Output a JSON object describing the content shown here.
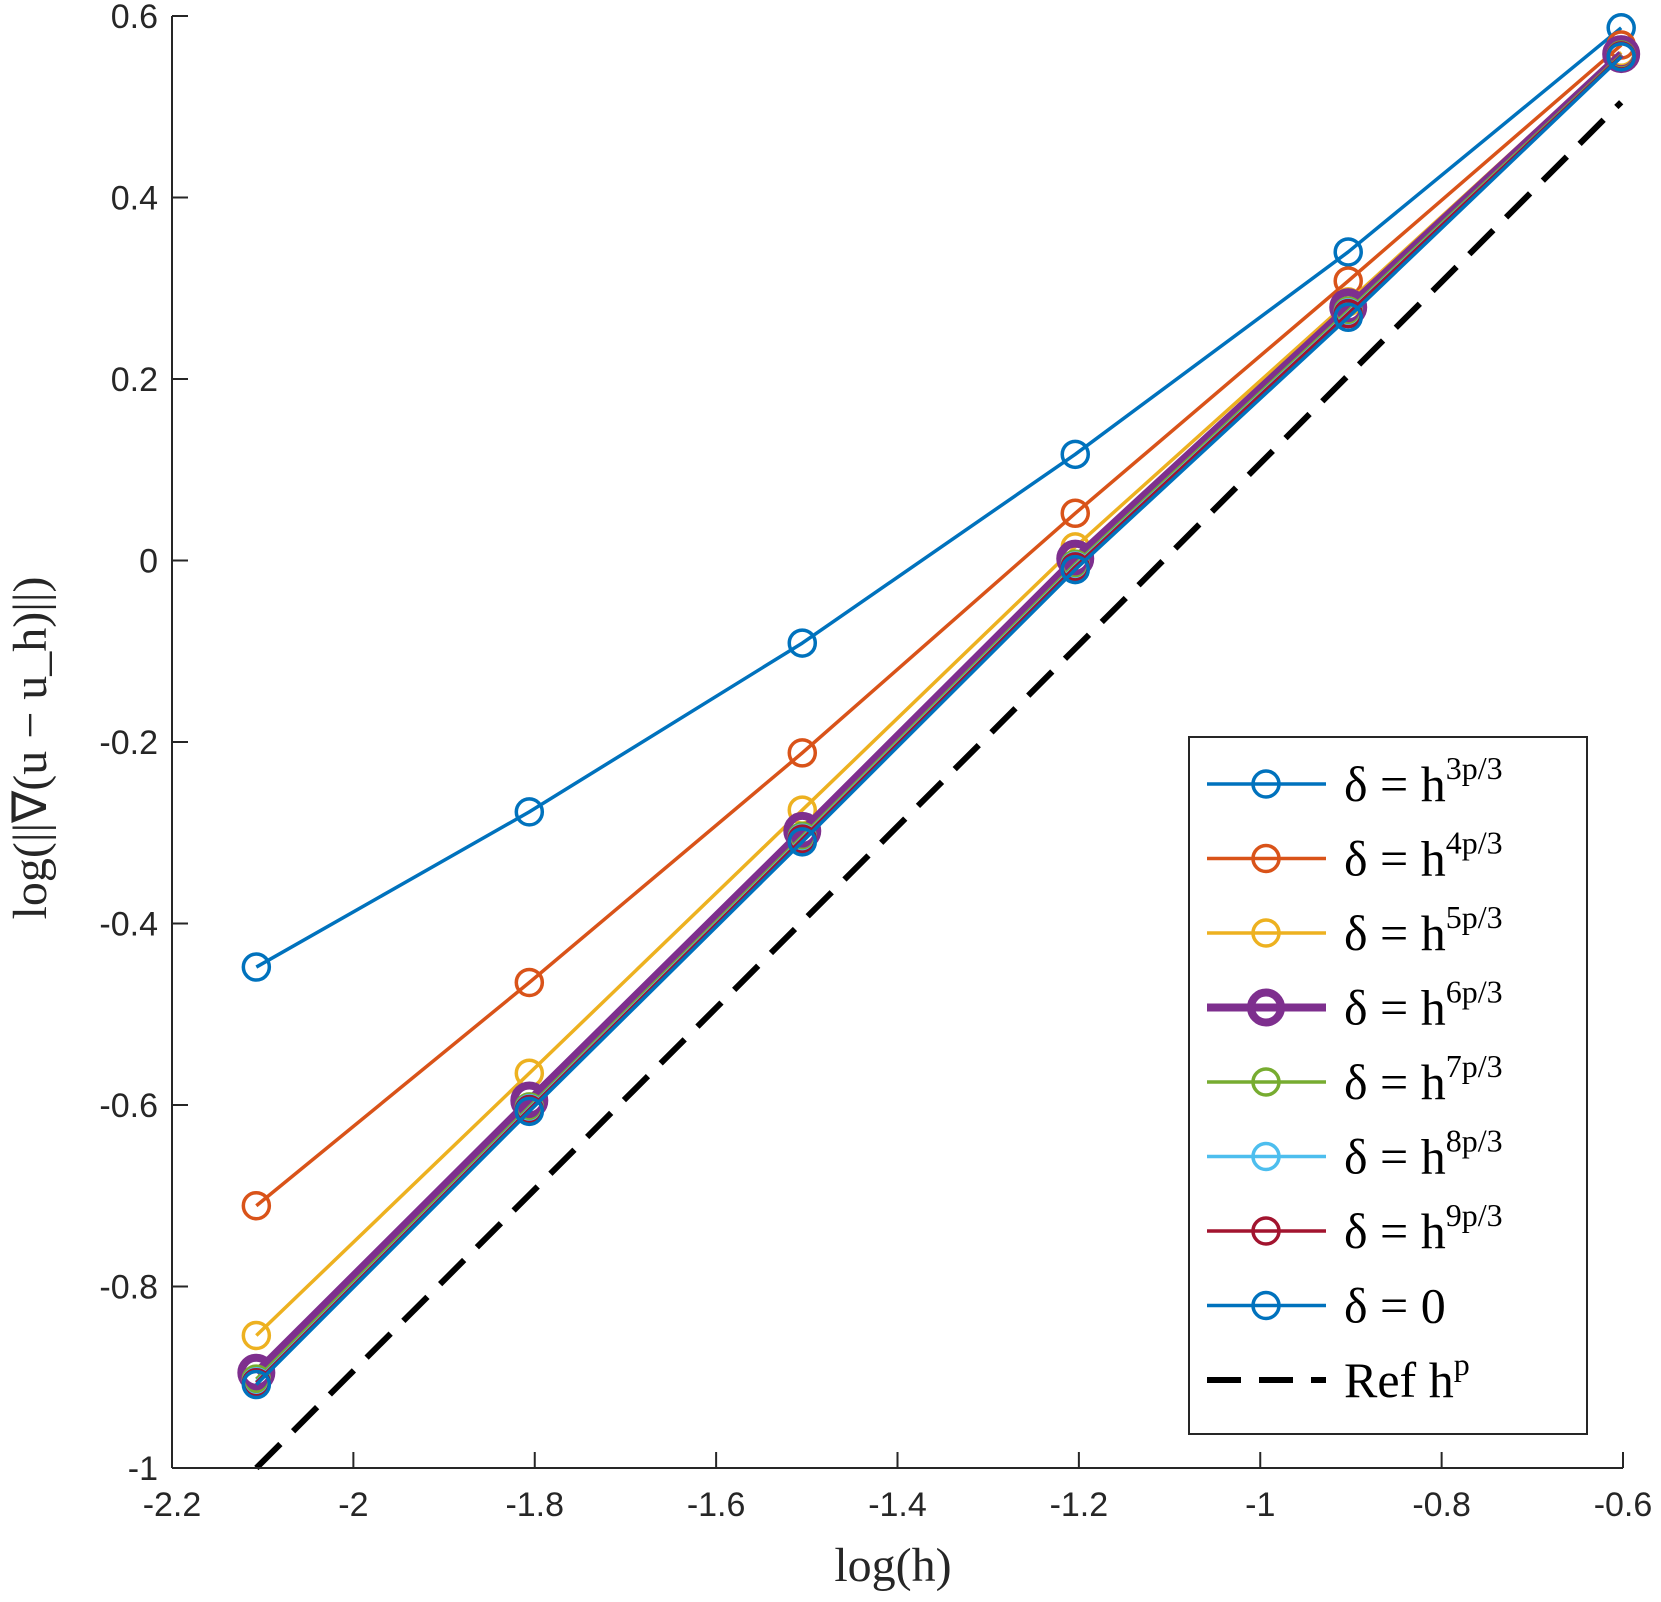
{
  "chart_data": {
    "type": "line",
    "title": "",
    "xlabel": "log(h)",
    "ylabel": "log(||∇(u − u_h)||)",
    "xlim": [
      -2.2,
      -0.6
    ],
    "ylim": [
      -1,
      0.6
    ],
    "xticks": [
      -2.2,
      -2,
      -1.8,
      -1.6,
      -1.4,
      -1.2,
      -1,
      -0.8,
      -0.6
    ],
    "yticks": [
      -1,
      -0.8,
      -0.6,
      -0.4,
      -0.2,
      0,
      0.2,
      0.4,
      0.6
    ],
    "xtick_labels": [
      "-2.2",
      "-2",
      "-1.8",
      "-1.6",
      "-1.4",
      "-1.2",
      "-1",
      "-0.8",
      "-0.6"
    ],
    "ytick_labels": [
      "-1",
      "-0.8",
      "-0.6",
      "-0.4",
      "-0.2",
      "0",
      "0.2",
      "0.4",
      "0.6"
    ],
    "x": [
      -2.107,
      -1.806,
      -1.505,
      -1.204,
      -0.903,
      -0.602
    ],
    "series": [
      {
        "name": "δ = h^{3p/3}",
        "prefix": "δ = h",
        "exp": "3p/3",
        "color": "#0072BD",
        "emphasis": false,
        "values": [
          -0.448,
          -0.277,
          -0.091,
          0.117,
          0.34,
          0.587
        ]
      },
      {
        "name": "δ = h^{4p/3}",
        "prefix": "δ = h",
        "exp": "4p/3",
        "color": "#D95319",
        "emphasis": false,
        "values": [
          -0.711,
          -0.465,
          -0.212,
          0.052,
          0.308,
          0.568
        ]
      },
      {
        "name": "δ = h^{5p/3}",
        "prefix": "δ = h",
        "exp": "5p/3",
        "color": "#EDB120",
        "emphasis": false,
        "values": [
          -0.854,
          -0.565,
          -0.275,
          0.015,
          0.285,
          0.56
        ]
      },
      {
        "name": "δ = h^{6p/3}",
        "prefix": "δ = h",
        "exp": "6p/3",
        "color": "#7E2F8E",
        "emphasis": true,
        "values": [
          -0.895,
          -0.595,
          -0.298,
          0.002,
          0.279,
          0.558
        ]
      },
      {
        "name": "δ = h^{7p/3}",
        "prefix": "δ = h",
        "exp": "7p/3",
        "color": "#77AC30",
        "emphasis": false,
        "values": [
          -0.902,
          -0.602,
          -0.304,
          -0.004,
          0.275,
          0.557
        ]
      },
      {
        "name": "δ = h^{8p/3}",
        "prefix": "δ = h",
        "exp": "8p/3",
        "color": "#4DBEEE",
        "emphasis": false,
        "values": [
          -0.905,
          -0.604,
          -0.306,
          -0.006,
          0.273,
          0.556
        ]
      },
      {
        "name": "δ = h^{9p/3}",
        "prefix": "δ = h",
        "exp": "9p/3",
        "color": "#A2142F",
        "emphasis": false,
        "values": [
          -0.906,
          -0.605,
          -0.307,
          -0.007,
          0.272,
          0.556
        ]
      },
      {
        "name": "δ = 0",
        "prefix": "δ = 0",
        "exp": "",
        "color": "#0072BD",
        "emphasis": false,
        "values": [
          -0.908,
          -0.607,
          -0.31,
          -0.01,
          0.268,
          0.555
        ]
      }
    ],
    "reference": {
      "name": "Ref h^p",
      "prefix": "Ref h",
      "exp": "p",
      "color": "#000000",
      "style": "dashed",
      "x": [
        -2.107,
        -0.602
      ],
      "values": [
        -1.0,
        0.505
      ]
    },
    "legend_position": "bottom-right",
    "grid": false
  }
}
